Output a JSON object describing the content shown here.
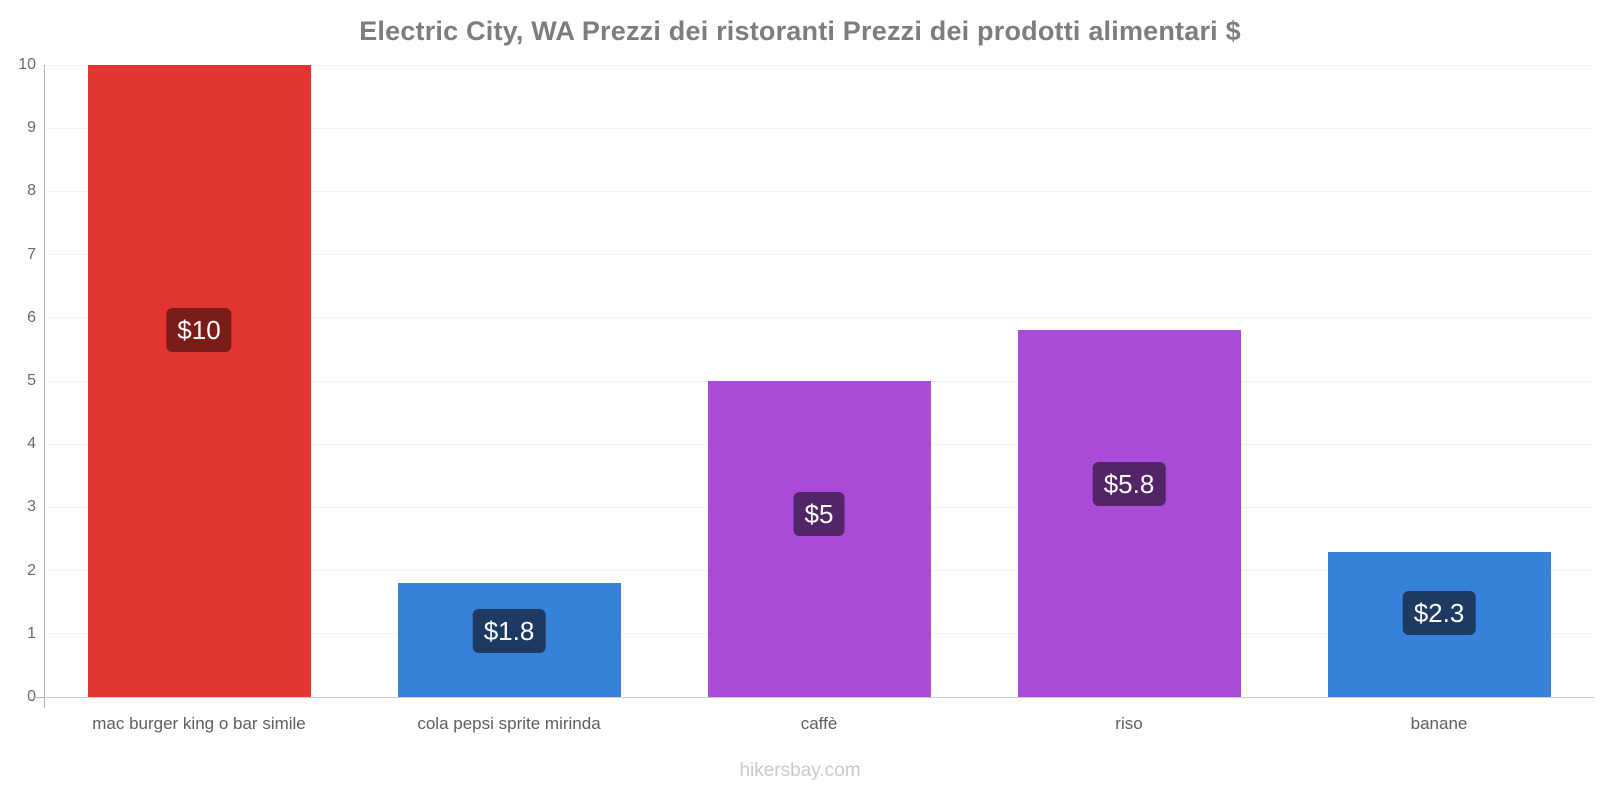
{
  "page": {
    "title": "Electric City, WA Prezzi dei ristoranti Prezzi dei prodotti alimentari $",
    "footer": "hikersbay.com"
  },
  "chart_data": {
    "type": "bar",
    "title": "Electric City, WA Prezzi dei ristoranti Prezzi dei prodotti alimentari $",
    "categories": [
      "mac burger king o bar simile",
      "cola pepsi sprite mirinda",
      "caffè",
      "riso",
      "banane"
    ],
    "values": [
      10,
      1.8,
      5,
      5.8,
      2.3
    ],
    "value_labels": [
      "$10",
      "$1.8",
      "$5",
      "$5.8",
      "$2.3"
    ],
    "bar_colors": [
      "#e13531",
      "#3781db",
      "#a94bd6",
      "#a94bd6",
      "#3781db"
    ],
    "badge_colors": [
      "#7a1d18",
      "#1e3a61",
      "#522567",
      "#522567",
      "#1e3a61"
    ],
    "currency": "$",
    "xlabel": "",
    "ylabel": "",
    "ylim": [
      0,
      10
    ],
    "yticks": [
      0,
      1,
      2,
      3,
      4,
      5,
      6,
      7,
      8,
      9,
      10
    ],
    "grid": true,
    "legend": false,
    "axis_color": "#b5b5b5",
    "grid_color": "#f4f4f4",
    "text_color": "#6b6b6b"
  }
}
